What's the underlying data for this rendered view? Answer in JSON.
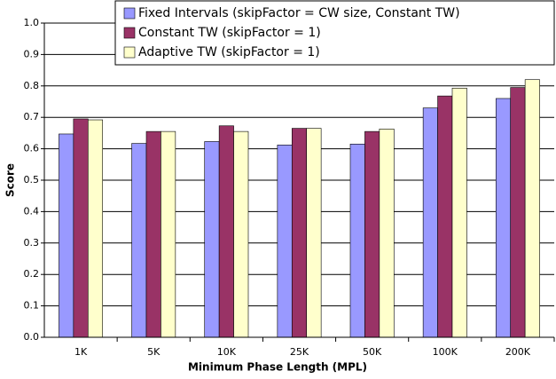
{
  "chart_data": {
    "type": "bar",
    "x_label": "Minimum Phase Length (MPL)",
    "y_label": "Score",
    "categories": [
      "1K",
      "5K",
      "10K",
      "25K",
      "50K",
      "100K",
      "200K"
    ],
    "series": [
      {
        "name": "Fixed Intervals (skipFactor = CW size, Constant TW)",
        "color": "#9999ff",
        "values": [
          0.647,
          0.617,
          0.623,
          0.612,
          0.615,
          0.73,
          0.76
        ]
      },
      {
        "name": "Constant TW (skipFactor = 1)",
        "color": "#993366",
        "values": [
          0.695,
          0.655,
          0.673,
          0.665,
          0.655,
          0.768,
          0.795
        ]
      },
      {
        "name": "Adaptive TW (skipFactor = 1)",
        "color": "#ffffcc",
        "values": [
          0.692,
          0.655,
          0.655,
          0.665,
          0.663,
          0.793,
          0.82
        ]
      }
    ],
    "ylim": [
      0,
      1
    ],
    "yticks": [
      {
        "value": 0,
        "label": "0.0"
      },
      0.1,
      0.2,
      0.3,
      0.4,
      0.5,
      0.6,
      0.7,
      0.8,
      0.9,
      {
        "value": 1,
        "label": "1.0"
      }
    ],
    "grid": true,
    "legend": "upper right"
  }
}
